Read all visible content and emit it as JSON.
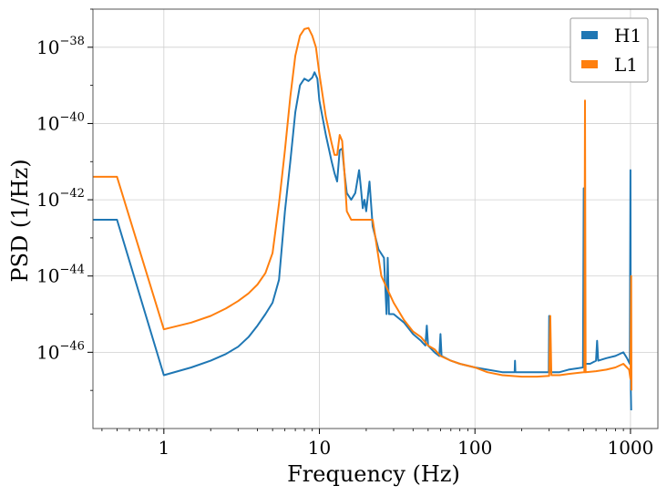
{
  "chart_data": {
    "type": "line",
    "title": "",
    "xlabel": "Frequency (Hz)",
    "ylabel": "PSD (1/Hz)",
    "xscale": "log",
    "yscale": "log",
    "xlim": [
      0.35,
      1500
    ],
    "ylim": [
      1e-48,
      1e-37
    ],
    "grid": true,
    "legend": "top-right",
    "x_ticks": [
      {
        "value": 1,
        "label": "1"
      },
      {
        "value": 10,
        "label": "10"
      },
      {
        "value": 100,
        "label": "100"
      },
      {
        "value": 1000,
        "label": "1000"
      }
    ],
    "y_ticks": [
      {
        "value": 1e-38,
        "base": "10",
        "exp": "−38"
      },
      {
        "value": 1e-40,
        "base": "10",
        "exp": "−40"
      },
      {
        "value": 1e-42,
        "base": "10",
        "exp": "−42"
      },
      {
        "value": 1e-44,
        "base": "10",
        "exp": "−44"
      },
      {
        "value": 1e-46,
        "base": "10",
        "exp": "−46"
      }
    ],
    "series": [
      {
        "name": "H1",
        "color": "#1f77b4",
        "points": [
          [
            0.35,
            3e-43
          ],
          [
            0.5,
            3e-43
          ],
          [
            1.0,
            2.5e-47
          ],
          [
            1.5,
            4e-47
          ],
          [
            2.0,
            6e-47
          ],
          [
            2.5,
            9e-47
          ],
          [
            3.0,
            1.4e-46
          ],
          [
            3.5,
            2.5e-46
          ],
          [
            4.0,
            5e-46
          ],
          [
            4.5,
            1e-45
          ],
          [
            5.0,
            2e-45
          ],
          [
            5.5,
            8e-45
          ],
          [
            6.0,
            5e-43
          ],
          [
            6.5,
            1e-41
          ],
          [
            7.0,
            2e-40
          ],
          [
            7.5,
            1e-39
          ],
          [
            8.0,
            1.5e-39
          ],
          [
            8.5,
            1.3e-39
          ],
          [
            9.0,
            1.6e-39
          ],
          [
            9.3,
            2.2e-39
          ],
          [
            9.7,
            1.5e-39
          ],
          [
            10.0,
            4e-40
          ],
          [
            11.0,
            5e-41
          ],
          [
            12.0,
            1e-41
          ],
          [
            12.5,
            5e-42
          ],
          [
            13.0,
            3e-42
          ],
          [
            13.5,
            2e-41
          ],
          [
            14.0,
            2.2e-41
          ],
          [
            14.5,
            5e-42
          ],
          [
            15.0,
            1.5e-42
          ],
          [
            16.0,
            1e-42
          ],
          [
            17.0,
            1.5e-42
          ],
          [
            18.0,
            6e-42
          ],
          [
            18.5,
            2e-42
          ],
          [
            19.0,
            6e-43
          ],
          [
            19.5,
            1e-42
          ],
          [
            20.0,
            5e-43
          ],
          [
            21.0,
            3e-42
          ],
          [
            22.0,
            2e-43
          ],
          [
            24.0,
            5e-44
          ],
          [
            26.0,
            3e-44
          ],
          [
            27.0,
            1e-45
          ],
          [
            27.5,
            3e-44
          ],
          [
            28.0,
            1e-45
          ],
          [
            30.0,
            1e-45
          ],
          [
            35.0,
            6e-46
          ],
          [
            40.0,
            3e-46
          ],
          [
            45.0,
            2e-46
          ],
          [
            48.0,
            1.5e-46
          ],
          [
            49.0,
            5e-46
          ],
          [
            50.0,
            1.5e-46
          ],
          [
            55.0,
            1e-46
          ],
          [
            59.0,
            8e-47
          ],
          [
            60.0,
            3e-46
          ],
          [
            61.0,
            8e-47
          ],
          [
            70.0,
            6e-47
          ],
          [
            80.0,
            5e-47
          ],
          [
            100.0,
            4e-47
          ],
          [
            120.0,
            3.5e-47
          ],
          [
            150.0,
            3e-47
          ],
          [
            180.0,
            3e-47
          ],
          [
            181.0,
            6e-47
          ],
          [
            182.0,
            3e-47
          ],
          [
            200.0,
            3e-47
          ],
          [
            250.0,
            3e-47
          ],
          [
            298.0,
            3e-47
          ],
          [
            300.0,
            9e-46
          ],
          [
            302.0,
            3e-47
          ],
          [
            350.0,
            3e-47
          ],
          [
            400.0,
            3.5e-47
          ],
          [
            495.0,
            4e-47
          ],
          [
            500.0,
            2e-42
          ],
          [
            505.0,
            5e-47
          ],
          [
            550.0,
            5e-47
          ],
          [
            600.0,
            6e-47
          ],
          [
            610.0,
            2e-46
          ],
          [
            620.0,
            6e-47
          ],
          [
            700.0,
            7e-47
          ],
          [
            800.0,
            8e-47
          ],
          [
            900.0,
            1e-46
          ],
          [
            950.0,
            7e-47
          ],
          [
            990.0,
            5e-47
          ],
          [
            1000.0,
            6e-42
          ],
          [
            1005.0,
            1e-47
          ],
          [
            1010.0,
            3e-48
          ]
        ]
      },
      {
        "name": "L1",
        "color": "#ff7f0e",
        "points": [
          [
            0.35,
            4e-42
          ],
          [
            0.5,
            4e-42
          ],
          [
            1.0,
            4e-46
          ],
          [
            1.5,
            6e-46
          ],
          [
            2.0,
            9e-46
          ],
          [
            2.5,
            1.4e-45
          ],
          [
            3.0,
            2.2e-45
          ],
          [
            3.5,
            3.5e-45
          ],
          [
            4.0,
            6e-45
          ],
          [
            4.5,
            1.2e-44
          ],
          [
            5.0,
            4e-44
          ],
          [
            5.5,
            8e-43
          ],
          [
            6.0,
            2e-41
          ],
          [
            6.5,
            5e-40
          ],
          [
            7.0,
            6e-39
          ],
          [
            7.5,
            2e-38
          ],
          [
            8.0,
            3e-38
          ],
          [
            8.5,
            3.2e-38
          ],
          [
            9.0,
            2e-38
          ],
          [
            9.5,
            1e-38
          ],
          [
            10.0,
            2e-39
          ],
          [
            11.0,
            1.5e-40
          ],
          [
            12.0,
            3e-41
          ],
          [
            12.5,
            1.5e-41
          ],
          [
            13.0,
            1.5e-41
          ],
          [
            13.5,
            5e-41
          ],
          [
            14.0,
            3.5e-41
          ],
          [
            14.5,
            5e-42
          ],
          [
            15.0,
            5e-43
          ],
          [
            16.0,
            3e-43
          ],
          [
            17.0,
            3e-43
          ],
          [
            18.0,
            3e-43
          ],
          [
            20.0,
            3e-43
          ],
          [
            22.0,
            3e-43
          ],
          [
            25.0,
            1e-44
          ],
          [
            30.0,
            2e-45
          ],
          [
            35.0,
            7e-46
          ],
          [
            40.0,
            3.5e-46
          ],
          [
            45.0,
            2.5e-46
          ],
          [
            50.0,
            1.5e-46
          ],
          [
            55.0,
            1.2e-46
          ],
          [
            60.0,
            8e-47
          ],
          [
            70.0,
            6e-47
          ],
          [
            80.0,
            5e-47
          ],
          [
            100.0,
            4e-47
          ],
          [
            120.0,
            3e-47
          ],
          [
            150.0,
            2.5e-47
          ],
          [
            200.0,
            2.3e-47
          ],
          [
            250.0,
            2.3e-47
          ],
          [
            300.0,
            2.4e-47
          ],
          [
            305.0,
            9e-46
          ],
          [
            310.0,
            2.5e-47
          ],
          [
            350.0,
            2.5e-47
          ],
          [
            400.0,
            2.7e-47
          ],
          [
            500.0,
            3e-47
          ],
          [
            505.0,
            3e-47
          ],
          [
            510.0,
            4e-40
          ],
          [
            515.0,
            3e-47
          ],
          [
            600.0,
            3.2e-47
          ],
          [
            700.0,
            3.5e-47
          ],
          [
            800.0,
            4e-47
          ],
          [
            900.0,
            5e-47
          ],
          [
            980.0,
            3.5e-47
          ],
          [
            1000.0,
            2e-47
          ],
          [
            1010.0,
            1e-44
          ],
          [
            1015.0,
            1e-47
          ]
        ]
      }
    ]
  }
}
